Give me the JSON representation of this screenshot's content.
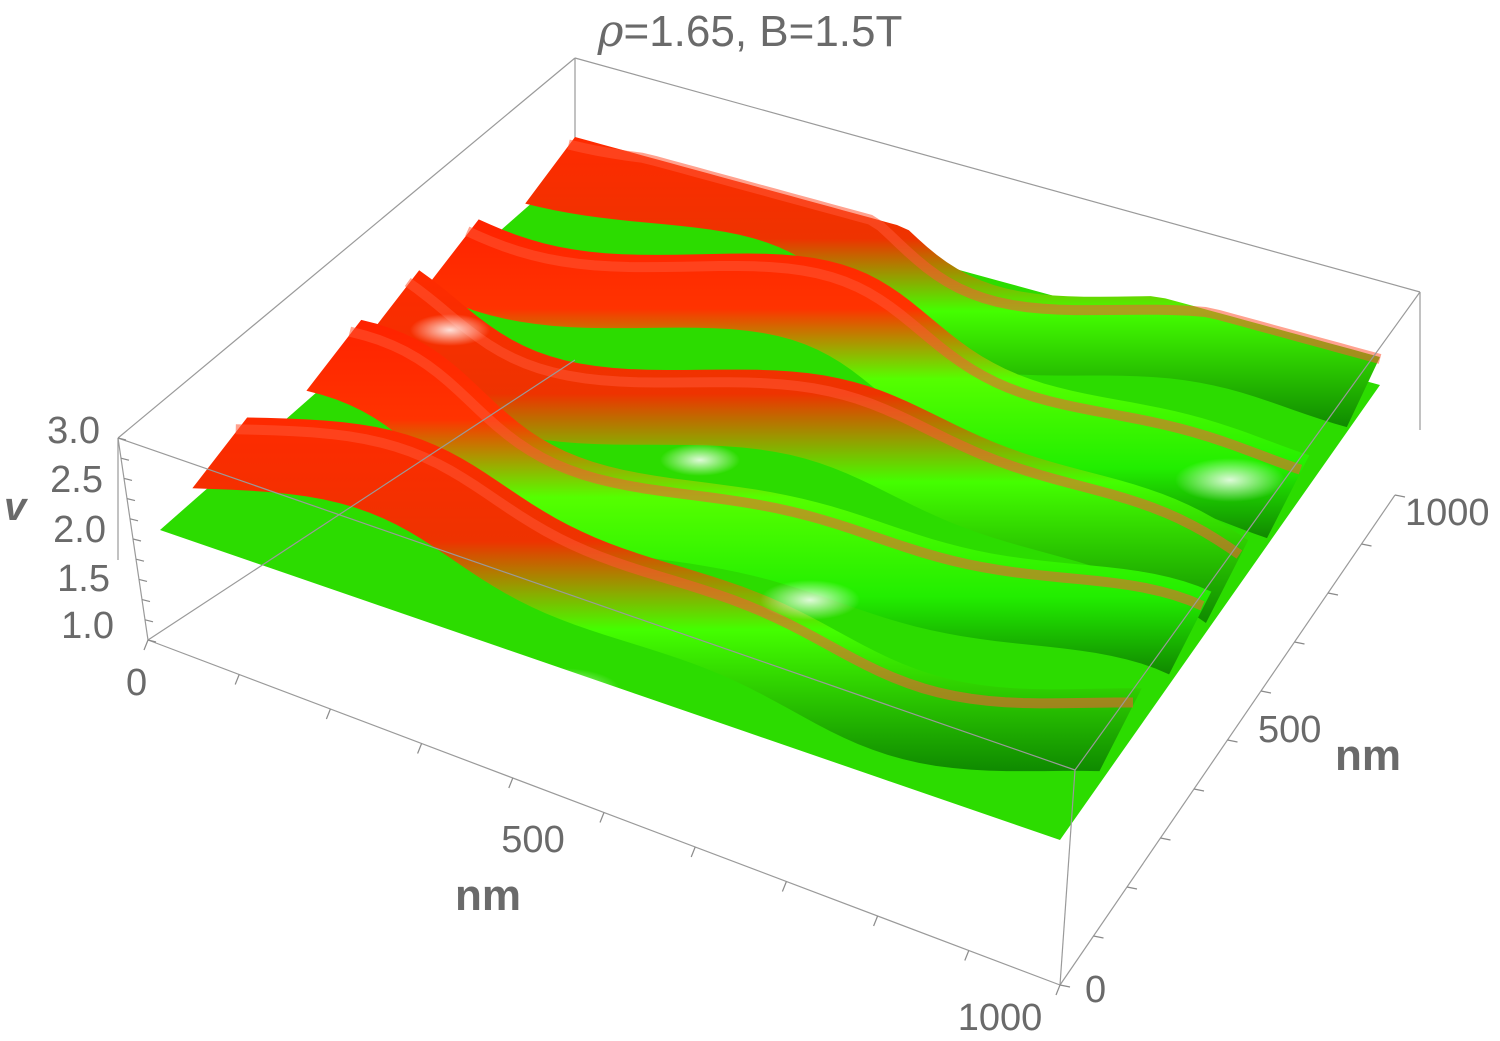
{
  "chart_data": {
    "type": "surface3d",
    "title_symbol": "ρ",
    "title_rest": "=1.65, B=1.5T",
    "x_axis": {
      "label": "nm",
      "ticks": [
        "0",
        "500",
        "1000"
      ],
      "range": [
        0,
        1000
      ]
    },
    "y_axis": {
      "label": "nm",
      "ticks": [
        "0",
        "500",
        "1000"
      ],
      "range": [
        0,
        1000
      ]
    },
    "z_axis": {
      "label": "v",
      "ticks": [
        "1.0",
        "1.5",
        "2.0",
        "2.5",
        "3.0"
      ],
      "range": [
        0.8,
        3.0
      ]
    },
    "surface": {
      "description_colors": {
        "high": "#ff1a00",
        "mid": "#33ff00",
        "low": "#ffffff"
      },
      "stripe_count": 5,
      "stripe_base_level": 1.7,
      "stripe_peak_level": 2.4,
      "stripe_trough_level": 1.0
    },
    "box": true,
    "grid": false
  }
}
